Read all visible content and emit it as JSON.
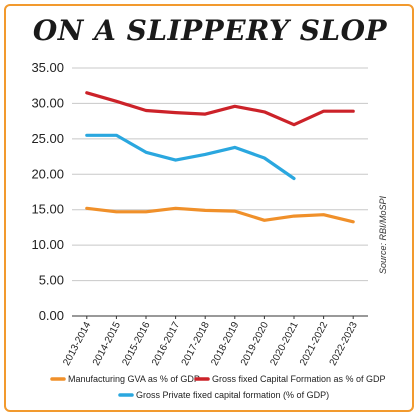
{
  "title": "ON A SLIPPERY SLOP",
  "source": "Source: RBI/MoSPI",
  "chart_data": {
    "type": "line",
    "categories": [
      "2013-2014",
      "2014-2015",
      "2015-2016",
      "2016-2017",
      "2017-2018",
      "2018-2019",
      "2019-2020",
      "2020-2021",
      "2021-2022",
      "2022-2023"
    ],
    "ylim": [
      0,
      35
    ],
    "yticks": [
      "35.00",
      "30.00",
      "25.00",
      "20.00",
      "15.00",
      "10.00",
      "5.00",
      "0.00"
    ],
    "grid": "horizontal",
    "legend_position": "bottom",
    "series": [
      {
        "name": "Manufacturing GVA as % of GDP",
        "color": "#f0902a",
        "values": [
          15.2,
          14.7,
          14.7,
          15.2,
          14.9,
          14.8,
          13.5,
          14.1,
          14.3,
          13.3
        ]
      },
      {
        "name": "Gross fixed Capital Formation as % of GDP",
        "color": "#cc2229",
        "values": [
          31.5,
          30.3,
          29.0,
          28.7,
          28.5,
          29.6,
          28.8,
          27.0,
          28.9,
          28.9
        ]
      },
      {
        "name": "Gross Private fixed capital formation (% of GDP)",
        "color": "#2aa7df",
        "values": [
          25.5,
          25.5,
          23.1,
          22.0,
          22.8,
          23.8,
          22.3,
          19.4,
          null,
          null
        ]
      }
    ]
  }
}
